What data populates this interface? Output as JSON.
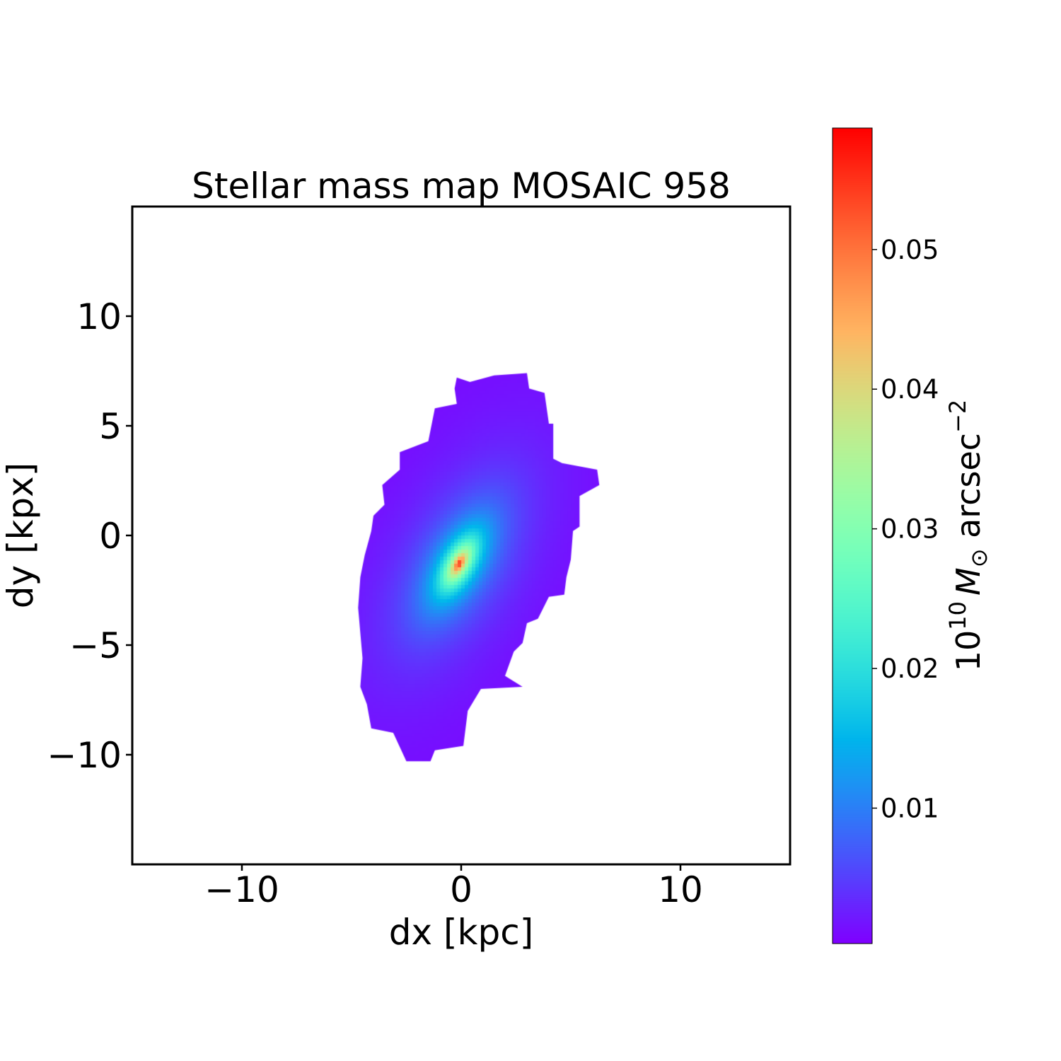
{
  "chart_data": {
    "type": "heatmap",
    "title": "Stellar mass map MOSAIC 958",
    "xlabel": "dx [kpc]",
    "ylabel": "dy [kpx]",
    "xlim": [
      -15,
      15
    ],
    "ylim": [
      -15,
      15
    ],
    "xticks": [
      {
        "value": -10,
        "label": "−10"
      },
      {
        "value": 0,
        "label": "0"
      },
      {
        "value": 10,
        "label": "10"
      }
    ],
    "yticks": [
      {
        "value": 10,
        "label": "10"
      },
      {
        "value": 5,
        "label": "5"
      },
      {
        "value": 0,
        "label": "0"
      },
      {
        "value": -5,
        "label": "−5"
      },
      {
        "value": -10,
        "label": "−10"
      }
    ],
    "grid": false,
    "colormap": "rainbow",
    "colorbar": {
      "label_prefix": "10",
      "label_exp": "10",
      "label_symbol": "M",
      "label_sub": "⊙",
      "label_unit": " arcsec",
      "label_unit_exp": "−2",
      "range": [
        0.0003,
        0.0587
      ],
      "ticks": [
        {
          "value": 0.01,
          "label": "0.01"
        },
        {
          "value": 0.02,
          "label": "0.02"
        },
        {
          "value": 0.03,
          "label": "0.03"
        },
        {
          "value": 0.04,
          "label": "0.04"
        },
        {
          "value": 0.05,
          "label": "0.05"
        }
      ]
    },
    "masked_region_color": "#ffffff",
    "source_outline_kpc": [
      [
        -0.2,
        7.2
      ],
      [
        0.4,
        7.0
      ],
      [
        1.5,
        7.3
      ],
      [
        3.0,
        7.4
      ],
      [
        3.1,
        6.7
      ],
      [
        3.8,
        6.5
      ],
      [
        4.0,
        5.1
      ],
      [
        4.2,
        5.1
      ],
      [
        4.2,
        3.5
      ],
      [
        4.6,
        3.3
      ],
      [
        6.2,
        3.0
      ],
      [
        6.3,
        2.3
      ],
      [
        5.4,
        1.8
      ],
      [
        5.4,
        1.2
      ],
      [
        5.4,
        0.4
      ],
      [
        5.1,
        0.2
      ],
      [
        5.0,
        -1.1
      ],
      [
        4.8,
        -1.9
      ],
      [
        4.7,
        -2.7
      ],
      [
        4.0,
        -2.8
      ],
      [
        3.5,
        -3.8
      ],
      [
        3.0,
        -4.0
      ],
      [
        2.8,
        -4.9
      ],
      [
        2.4,
        -5.3
      ],
      [
        2.0,
        -6.4
      ],
      [
        2.8,
        -6.9
      ],
      [
        0.9,
        -7.0
      ],
      [
        0.3,
        -8.0
      ],
      [
        0.1,
        -9.6
      ],
      [
        -1.2,
        -9.8
      ],
      [
        -1.4,
        -10.3
      ],
      [
        -2.5,
        -10.3
      ],
      [
        -3.1,
        -9.0
      ],
      [
        -4.1,
        -8.8
      ],
      [
        -4.3,
        -7.7
      ],
      [
        -4.6,
        -6.9
      ],
      [
        -4.5,
        -5.6
      ],
      [
        -4.7,
        -3.3
      ],
      [
        -4.6,
        -1.9
      ],
      [
        -4.4,
        -0.9
      ],
      [
        -4.1,
        0.2
      ],
      [
        -4.0,
        0.9
      ],
      [
        -3.5,
        1.4
      ],
      [
        -3.6,
        2.3
      ],
      [
        -2.8,
        3.0
      ],
      [
        -2.8,
        3.8
      ],
      [
        -1.5,
        4.3
      ],
      [
        -1.2,
        5.8
      ],
      [
        -0.2,
        6.0
      ],
      [
        -0.3,
        6.7
      ]
    ],
    "peak": {
      "dx": -0.1,
      "dy": -1.3,
      "value": 0.058
    },
    "outskirts_value": 0.001,
    "major_axis_angle_deg": 60
  }
}
